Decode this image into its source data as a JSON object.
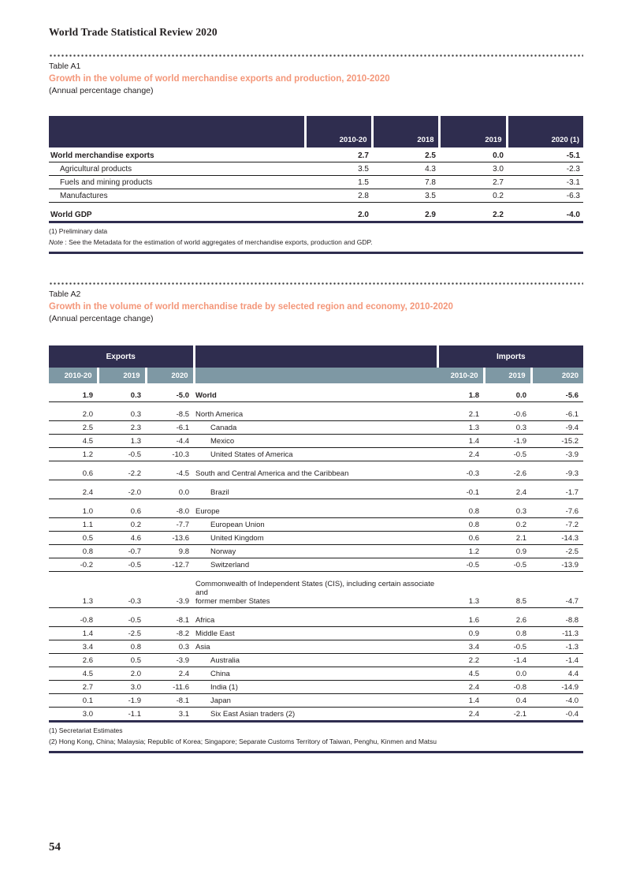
{
  "page": {
    "header_title": "World Trade Statistical Review 2020",
    "page_number": "54"
  },
  "colors": {
    "navy_header": "#2f2d4f",
    "slate_subheader": "#7e98a4",
    "accent_orange": "#f4977a",
    "text": "#231f20"
  },
  "table_a1": {
    "label": "Table A1",
    "title": "Growth in the volume of world merchandise exports and production, 2010-2020",
    "subtitle": "(Annual percentage change)",
    "columns": [
      "2010-20",
      "2018",
      "2019",
      "2020 (1)"
    ],
    "rows": [
      {
        "label": "World merchandise exports",
        "bold": true,
        "indent": false,
        "gap": false,
        "values": [
          "2.7",
          "2.5",
          "0.0",
          "-5.1"
        ]
      },
      {
        "label": "Agricultural products",
        "bold": false,
        "indent": true,
        "gap": false,
        "values": [
          "3.5",
          "4.3",
          "3.0",
          "-2.3"
        ]
      },
      {
        "label": "Fuels and mining products",
        "bold": false,
        "indent": true,
        "gap": false,
        "values": [
          "1.5",
          "7.8",
          "2.7",
          "-3.1"
        ]
      },
      {
        "label": "Manufactures",
        "bold": false,
        "indent": true,
        "gap": false,
        "values": [
          "2.8",
          "3.5",
          "0.2",
          "-6.3"
        ]
      },
      {
        "label": "World GDP",
        "bold": true,
        "indent": false,
        "gap": true,
        "values": [
          "2.0",
          "2.9",
          "2.2",
          "-4.0"
        ]
      }
    ],
    "footnote": "(1) Preliminary data",
    "note": {
      "label": "Note",
      "separator": " :  ",
      "text": "See the Metadata for the estimation of world aggregates of merchandise exports, production and GDP."
    }
  },
  "table_a2": {
    "label": "Table A2",
    "title": "Growth in the volume of world merchandise trade by selected region and economy, 2010-2020",
    "subtitle": "(Annual percentage change)",
    "group_headers": {
      "exports": "Exports",
      "imports": "Imports"
    },
    "year_columns": [
      "2010-20",
      "2019",
      "2020"
    ],
    "rows": [
      {
        "label": "World",
        "bold": true,
        "indent": 0,
        "gap": true,
        "exports": [
          "1.9",
          "0.3",
          "-5.0"
        ],
        "imports": [
          "1.8",
          "0.0",
          "-5.6"
        ]
      },
      {
        "label": "North America",
        "bold": false,
        "indent": 0,
        "gap": true,
        "exports": [
          "2.0",
          "0.3",
          "-8.5"
        ],
        "imports": [
          "2.1",
          "-0.6",
          "-6.1"
        ]
      },
      {
        "label": "Canada",
        "bold": false,
        "indent": 1,
        "gap": false,
        "exports": [
          "2.5",
          "2.3",
          "-6.1"
        ],
        "imports": [
          "1.3",
          "0.3",
          "-9.4"
        ]
      },
      {
        "label": "Mexico",
        "bold": false,
        "indent": 1,
        "gap": false,
        "exports": [
          "4.5",
          "1.3",
          "-4.4"
        ],
        "imports": [
          "1.4",
          "-1.9",
          "-15.2"
        ]
      },
      {
        "label": "United States of America",
        "bold": false,
        "indent": 1,
        "gap": false,
        "exports": [
          "1.2",
          "-0.5",
          "-10.3"
        ],
        "imports": [
          "2.4",
          "-0.5",
          "-3.9"
        ]
      },
      {
        "label": "South and Central America and the Caribbean",
        "bold": false,
        "indent": 0,
        "gap": true,
        "exports": [
          "0.6",
          "-2.2",
          "-4.5"
        ],
        "imports": [
          "-0.3",
          "-2.6",
          "-9.3"
        ]
      },
      {
        "label": "Brazil",
        "bold": false,
        "indent": 1,
        "gap": true,
        "exports": [
          "2.4",
          "-2.0",
          "0.0"
        ],
        "imports": [
          "-0.1",
          "2.4",
          "-1.7"
        ]
      },
      {
        "label": "Europe",
        "bold": false,
        "indent": 0,
        "gap": true,
        "exports": [
          "1.0",
          "0.6",
          "-8.0"
        ],
        "imports": [
          "0.8",
          "0.3",
          "-7.6"
        ]
      },
      {
        "label": "European Union",
        "bold": false,
        "indent": 1,
        "gap": false,
        "exports": [
          "1.1",
          "0.2",
          "-7.7"
        ],
        "imports": [
          "0.8",
          "0.2",
          "-7.2"
        ]
      },
      {
        "label": "United Kingdom",
        "bold": false,
        "indent": 1,
        "gap": false,
        "exports": [
          "0.5",
          "4.6",
          "-13.6"
        ],
        "imports": [
          "0.6",
          "2.1",
          "-14.3"
        ]
      },
      {
        "label": "Norway",
        "bold": false,
        "indent": 1,
        "gap": false,
        "exports": [
          "0.8",
          "-0.7",
          "9.8"
        ],
        "imports": [
          "1.2",
          "0.9",
          "-2.5"
        ]
      },
      {
        "label": "Switzerland",
        "bold": false,
        "indent": 1,
        "gap": false,
        "exports": [
          "-0.2",
          "-0.5",
          "-12.7"
        ],
        "imports": [
          "-0.5",
          "-0.5",
          "-13.9"
        ]
      },
      {
        "label": "Commonwealth of Independent States (CIS), including certain associate and\nformer member States",
        "bold": false,
        "indent": 0,
        "gap": true,
        "two_line": true,
        "exports": [
          "1.3",
          "-0.3",
          "-3.9"
        ],
        "imports": [
          "1.3",
          "8.5",
          "-4.7"
        ]
      },
      {
        "label": "Africa",
        "bold": false,
        "indent": 0,
        "gap": true,
        "exports": [
          "-0.8",
          "-0.5",
          "-8.1"
        ],
        "imports": [
          "1.6",
          "2.6",
          "-8.8"
        ]
      },
      {
        "label": "Middle East",
        "bold": false,
        "indent": 0,
        "gap": false,
        "exports": [
          "1.4",
          "-2.5",
          "-8.2"
        ],
        "imports": [
          "0.9",
          "0.8",
          "-11.3"
        ]
      },
      {
        "label": "Asia",
        "bold": false,
        "indent": 0,
        "gap": false,
        "exports": [
          "3.4",
          "0.8",
          "0.3"
        ],
        "imports": [
          "3.4",
          "-0.5",
          "-1.3"
        ]
      },
      {
        "label": "Australia",
        "bold": false,
        "indent": 1,
        "gap": false,
        "exports": [
          "2.6",
          "0.5",
          "-3.9"
        ],
        "imports": [
          "2.2",
          "-1.4",
          "-1.4"
        ]
      },
      {
        "label": "China",
        "bold": false,
        "indent": 1,
        "gap": false,
        "exports": [
          "4.5",
          "2.0",
          "2.4"
        ],
        "imports": [
          "4.5",
          "0.0",
          "4.4"
        ]
      },
      {
        "label": "India (1)",
        "bold": false,
        "indent": 1,
        "gap": false,
        "exports": [
          "2.7",
          "3.0",
          "-11.6"
        ],
        "imports": [
          "2.4",
          "-0.8",
          "-14.9"
        ]
      },
      {
        "label": "Japan",
        "bold": false,
        "indent": 1,
        "gap": false,
        "exports": [
          "0.1",
          "-1.9",
          "-8.1"
        ],
        "imports": [
          "1.4",
          "0.4",
          "-4.0"
        ]
      },
      {
        "label": "Six East Asian traders (2)",
        "bold": false,
        "indent": 1,
        "gap": false,
        "exports": [
          "3.0",
          "-1.1",
          "3.1"
        ],
        "imports": [
          "2.4",
          "-2.1",
          "-0.4"
        ]
      }
    ],
    "footnotes": [
      "(1) Secretariat Estimates",
      "(2) Hong Kong, China; Malaysia; Republic of Korea; Singapore; Separate Customs Territory of Taiwan, Penghu, Kinmen and Matsu"
    ]
  }
}
